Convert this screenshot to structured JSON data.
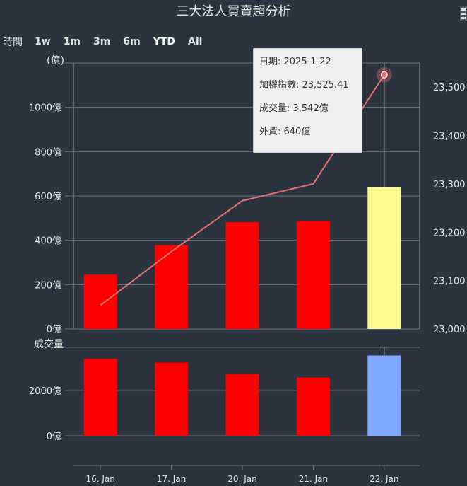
{
  "title": "三大法人買賣超分析",
  "range_selector": {
    "label": "時間",
    "buttons": [
      "1w",
      "1m",
      "3m",
      "6m",
      "YTD",
      "All"
    ],
    "selected": "YTD"
  },
  "tooltip": {
    "date": "日期: 2025-1-22",
    "index": "加權指數: 23,525.41",
    "volume": "成交量: 3,542億",
    "foreign": "外資: 640億"
  },
  "colors": {
    "background": "#2a333e",
    "bar_red": "#ff0000",
    "bar_highlight_upper": "#fdfb8f",
    "bar_highlight_lower": "#7fa7ff",
    "line": "#e57373",
    "grid": "#6f7680"
  },
  "chart_data": [
    {
      "type": "bar",
      "panel": "upper",
      "categories": [
        "16. Jan",
        "17. Jan",
        "20. Jan",
        "21. Jan",
        "22. Jan"
      ],
      "series": [
        {
          "name": "外資",
          "axis": "left",
          "type": "bar",
          "values": [
            245,
            378,
            482,
            487,
            640
          ]
        },
        {
          "name": "加權指數",
          "axis": "right",
          "type": "line",
          "values": [
            23049,
            23160,
            23265,
            23300,
            23525.41
          ]
        }
      ],
      "ylabel": "(億)",
      "ylim": [
        0,
        1200
      ],
      "yticks": [
        0,
        200,
        400,
        600,
        800,
        1000
      ],
      "ytick_labels": [
        "0億",
        "200億",
        "400億",
        "600億",
        "800億",
        "1000億"
      ],
      "y2lim": [
        23000,
        23550
      ],
      "y2ticks": [
        23000,
        23100,
        23200,
        23300,
        23400,
        23500
      ],
      "y2tick_labels": [
        "23,000",
        "23,100",
        "23,200",
        "23,300",
        "23,400",
        "23,500"
      ],
      "highlight_index": 4,
      "grid": true
    },
    {
      "type": "bar",
      "panel": "lower",
      "categories": [
        "16. Jan",
        "17. Jan",
        "20. Jan",
        "21. Jan",
        "22. Jan"
      ],
      "series": [
        {
          "name": "成交量",
          "values": [
            3400,
            3230,
            2730,
            2570,
            3542
          ]
        }
      ],
      "ylabel": "成交量",
      "ylim": [
        0,
        3900
      ],
      "yticks": [
        0,
        2000
      ],
      "ytick_labels": [
        "0億",
        "2000億"
      ],
      "highlight_index": 4,
      "grid": true
    }
  ]
}
